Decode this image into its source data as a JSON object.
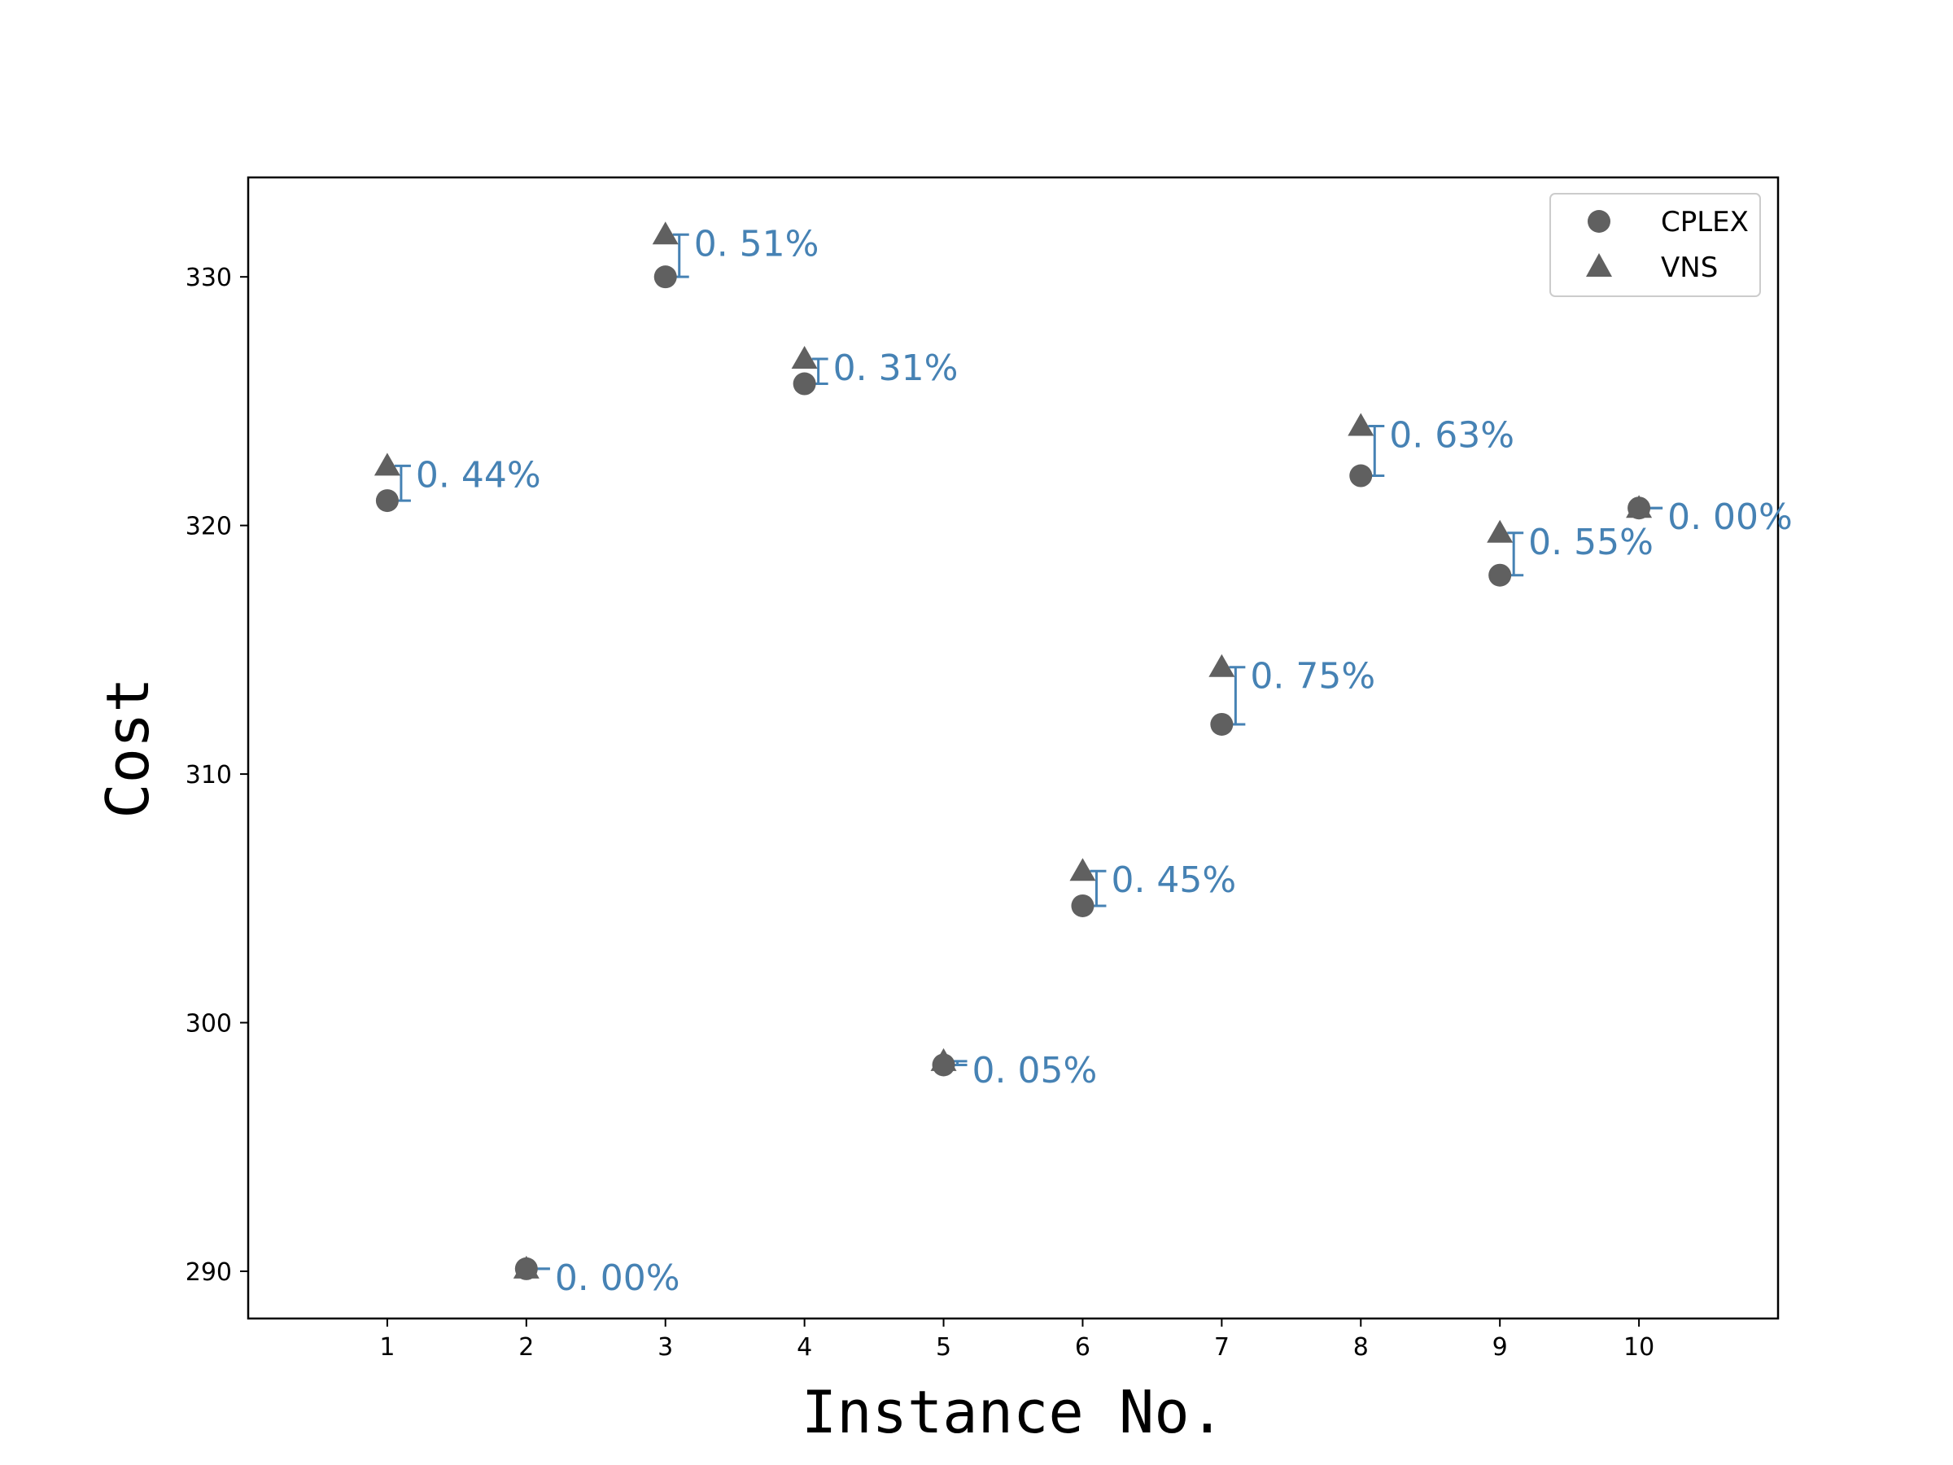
{
  "chart_data": {
    "type": "scatter",
    "xlabel": "Instance No.",
    "ylabel": "Cost",
    "x": [
      1,
      2,
      3,
      4,
      5,
      6,
      7,
      8,
      9,
      10
    ],
    "xlim": [
      0,
      11
    ],
    "ylim": [
      288.1,
      334.0
    ],
    "yticks": [
      290,
      300,
      310,
      320,
      330
    ],
    "legend_position": "top-right",
    "series": [
      {
        "name": "CPLEX",
        "marker": "circle",
        "color": "#606060",
        "values": [
          321.0,
          290.1,
          330.0,
          325.7,
          298.3,
          304.7,
          312.0,
          322.0,
          318.0,
          320.7
        ]
      },
      {
        "name": "VNS",
        "marker": "triangle",
        "color": "#606060",
        "values": [
          322.4,
          290.1,
          331.7,
          326.7,
          298.45,
          306.1,
          314.3,
          324.0,
          319.7,
          320.7
        ]
      }
    ],
    "gaps": {
      "color": "#4682b4",
      "labels": [
        "0. 44%",
        "0. 00%",
        "0. 51%",
        "0. 31%",
        "0. 05%",
        "0. 45%",
        "0. 75%",
        "0. 63%",
        "0. 55%",
        "0. 00%"
      ]
    }
  }
}
